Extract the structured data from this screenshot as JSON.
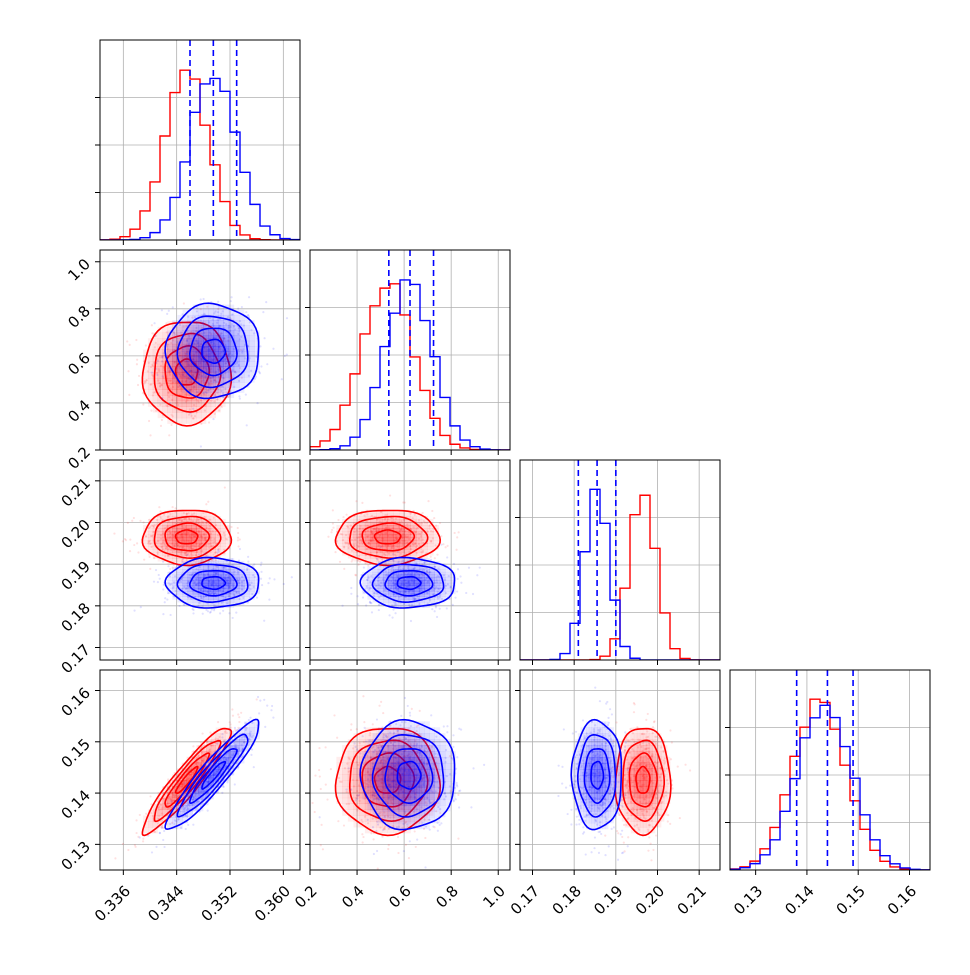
{
  "chart_data": {
    "type": "scatter",
    "title": "",
    "grid": true,
    "legend": "none",
    "colors": {
      "red_sample": "#ff0000",
      "blue_sample": "#0000ff"
    },
    "parameters": [
      {
        "index": 0,
        "range": [
          0.3325,
          0.3625
        ],
        "ticks": [
          0.336,
          0.344,
          0.352,
          0.36
        ],
        "tick_labels": [
          "0.336",
          "0.344",
          "0.352",
          "0.360"
        ]
      },
      {
        "index": 1,
        "range": [
          0.2,
          1.05
        ],
        "ticks": [
          0.2,
          0.4,
          0.6,
          0.8,
          1.0
        ],
        "tick_labels": [
          "0.2",
          "0.4",
          "0.6",
          "0.8",
          "1.0"
        ]
      },
      {
        "index": 2,
        "range": [
          0.167,
          0.215
        ],
        "ticks": [
          0.17,
          0.18,
          0.19,
          0.2,
          0.21
        ],
        "tick_labels": [
          "0.17",
          "0.18",
          "0.19",
          "0.20",
          "0.21"
        ]
      },
      {
        "index": 3,
        "range": [
          0.125,
          0.164
        ],
        "ticks": [
          0.13,
          0.14,
          0.15,
          0.16
        ],
        "tick_labels": [
          "0.13",
          "0.14",
          "0.15",
          "0.16"
        ]
      }
    ],
    "series": [
      {
        "color": "#ff0000",
        "means": [
          0.3455,
          0.53,
          0.1965,
          0.1425
        ],
        "sds": [
          0.0033,
          0.11,
          0.0033,
          0.0052
        ],
        "corr_03": 0.93,
        "hist_peak": [
          0.346,
          0.545,
          0.197,
          0.142
        ]
      },
      {
        "color": "#0000ff",
        "means": [
          0.3495,
          0.62,
          0.1855,
          0.1435
        ],
        "sds": [
          0.0035,
          0.1,
          0.003,
          0.0053
        ],
        "corr_03": 0.93,
        "hist_peak": [
          0.3495,
          0.62,
          0.186,
          0.144
        ]
      }
    ],
    "quantile_lines": {
      "color": "#0000ff",
      "param_0": [
        0.346,
        0.3495,
        0.353
      ],
      "param_1": [
        0.535,
        0.625,
        0.725
      ],
      "param_2": [
        0.181,
        0.1855,
        0.19
      ],
      "param_3": [
        0.138,
        0.144,
        0.149
      ]
    },
    "contour_levels_sigma": [
      0.5,
      1.0,
      1.5,
      2.0
    ]
  }
}
